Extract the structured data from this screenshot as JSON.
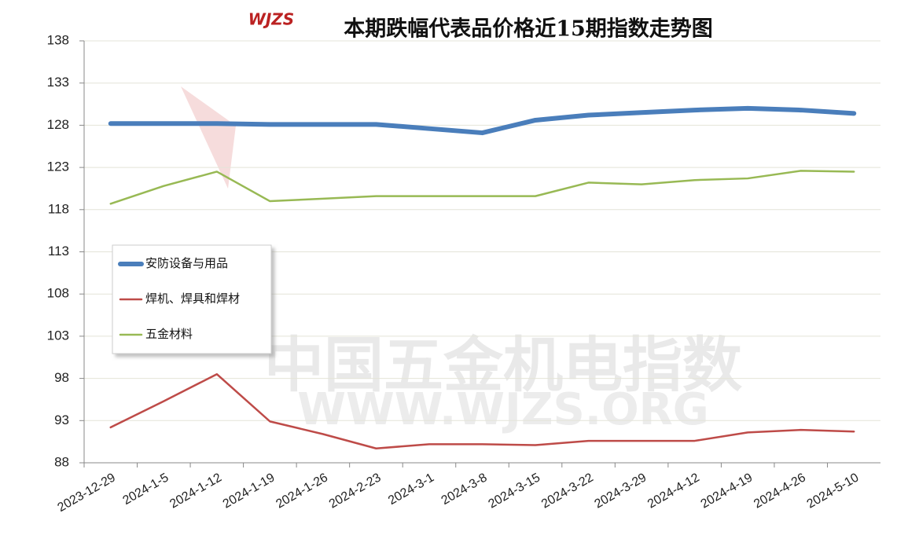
{
  "chart_data": {
    "type": "line",
    "title": "本期跌幅代表品价格近15期指数走势图",
    "logo": "WJZS",
    "watermark": [
      "中国五金机电指数",
      "WWW.WJZS.ORG"
    ],
    "categories": [
      "2023-12-29",
      "2024-1-5",
      "2024-1-12",
      "2024-1-19",
      "2024-1-26",
      "2024-2-23",
      "2024-3-1",
      "2024-3-8",
      "2024-3-15",
      "2024-3-22",
      "2024-3-29",
      "2024-4-12",
      "2024-4-19",
      "2024-4-26",
      "2024-5-10"
    ],
    "series": [
      {
        "name": "安防设备与用品",
        "color": "#4a7ebb",
        "values": [
          128.2,
          128.2,
          128.2,
          128.1,
          128.1,
          128.1,
          127.6,
          127.1,
          128.6,
          129.2,
          129.5,
          129.8,
          130.0,
          129.8,
          129.4
        ]
      },
      {
        "name": "焊机、焊具和焊材",
        "color": "#be4b48",
        "values": [
          92.2,
          95.3,
          98.5,
          92.9,
          91.4,
          89.7,
          90.2,
          90.2,
          90.1,
          90.6,
          90.6,
          90.6,
          91.6,
          91.9,
          91.7
        ]
      },
      {
        "name": "五金材料",
        "color": "#98b954",
        "values": [
          118.7,
          120.8,
          122.5,
          119.0,
          119.3,
          119.6,
          119.6,
          119.6,
          119.6,
          121.2,
          121.0,
          121.5,
          121.7,
          122.6,
          122.5
        ]
      }
    ],
    "ylim": [
      88,
      138
    ],
    "yticks": [
      88,
      93,
      98,
      103,
      108,
      113,
      118,
      123,
      128,
      133,
      138
    ],
    "grid": true
  }
}
